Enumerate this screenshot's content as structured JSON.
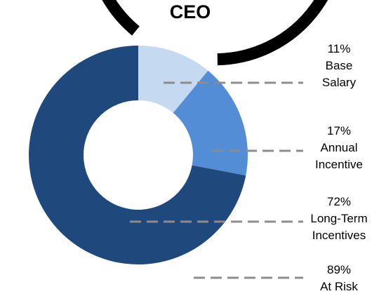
{
  "chart_data": {
    "type": "donut",
    "title": "CEO",
    "slices": [
      {
        "pct": "11%",
        "line1": "Base",
        "line2": "Salary",
        "value": 11,
        "color": "#c5d9f1"
      },
      {
        "pct": "17%",
        "line1": "Annual",
        "line2": "Incentive",
        "value": 17,
        "color": "#538dd5"
      },
      {
        "pct": "72%",
        "line1": "Long-Term",
        "line2": "Incentives",
        "value": 72,
        "color": "#1f497d"
      }
    ],
    "at_risk": {
      "pct": "89%",
      "label": "At Risk",
      "value": 89,
      "color": "#000000"
    }
  }
}
